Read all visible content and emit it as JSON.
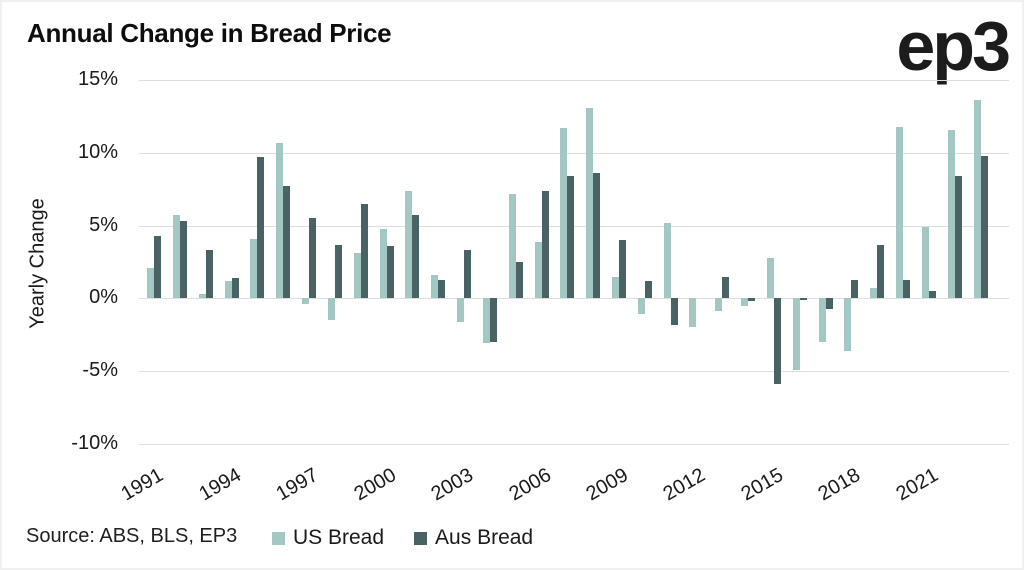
{
  "title": "Annual Change in Bread Price",
  "logo_text": "ep3",
  "source_text": "Source: ABS, BLS, EP3",
  "colors": {
    "us_bread": "#a3c8c4",
    "aus_bread": "#496264",
    "grid": "#dedede",
    "text": "#1a1a1a"
  },
  "legend": {
    "us_label": "US Bread",
    "aus_label": "Aus Bread"
  },
  "chart_data": {
    "type": "bar",
    "title": "Annual Change in Bread Price",
    "xlabel": "",
    "ylabel": "Yearly Change",
    "ylim": [
      -10,
      15
    ],
    "yticks": [
      15,
      10,
      5,
      0,
      -5,
      -10
    ],
    "ytick_suffix": "%",
    "grid": true,
    "legend_position": "bottom",
    "xtick_labels": [
      "1991",
      "1994",
      "1997",
      "2000",
      "2003",
      "2006",
      "2009",
      "2012",
      "2015",
      "2018",
      "2021"
    ],
    "categories": [
      1991,
      1992,
      1993,
      1994,
      1995,
      1996,
      1997,
      1998,
      1999,
      2000,
      2001,
      2002,
      2003,
      2004,
      2005,
      2006,
      2007,
      2008,
      2009,
      2010,
      2011,
      2012,
      2013,
      2014,
      2015,
      2016,
      2017,
      2018,
      2019,
      2020,
      2021,
      2022,
      2023
    ],
    "series": [
      {
        "name": "US Bread",
        "color": "#a3c8c4",
        "values": [
          2.1,
          5.7,
          0.3,
          1.2,
          4.1,
          10.7,
          -0.4,
          -1.5,
          3.1,
          4.8,
          7.4,
          1.6,
          -1.6,
          -3.1,
          7.2,
          3.9,
          11.7,
          13.1,
          1.5,
          -1.1,
          5.2,
          -2.0,
          -0.9,
          -0.5,
          2.8,
          -4.9,
          -3.0,
          -3.6,
          0.7,
          11.8,
          4.9,
          11.6,
          13.6
        ]
      },
      {
        "name": "Aus Bread",
        "color": "#496264",
        "values": [
          4.3,
          5.3,
          3.3,
          1.4,
          9.7,
          7.7,
          5.5,
          3.7,
          6.5,
          3.6,
          5.7,
          1.3,
          3.3,
          -3.0,
          2.5,
          7.4,
          8.4,
          8.6,
          4.0,
          1.2,
          -1.8,
          0.0,
          1.5,
          -0.2,
          -5.9,
          -0.1,
          -0.7,
          1.3,
          3.7,
          1.3,
          0.5,
          8.4,
          9.8
        ]
      }
    ]
  }
}
